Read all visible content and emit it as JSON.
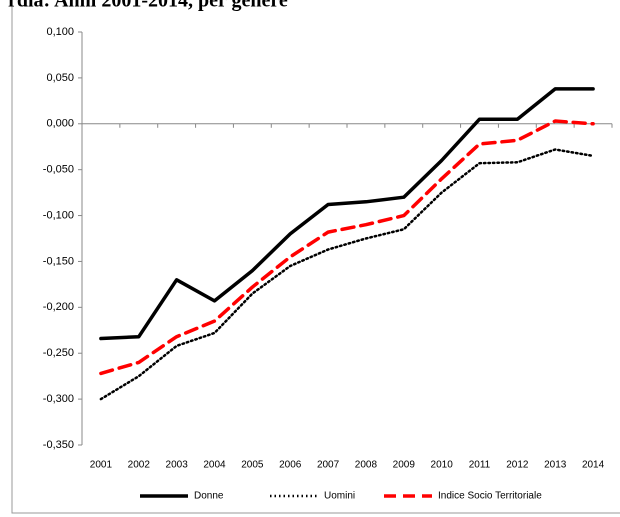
{
  "chart_data": {
    "type": "line",
    "title": "rdia: Anni 2001-2014, per genere",
    "categories": [
      "2001",
      "2002",
      "2003",
      "2004",
      "2005",
      "2006",
      "2007",
      "2008",
      "2009",
      "2010",
      "2011",
      "2012",
      "2013",
      "2014"
    ],
    "series": [
      {
        "name": "Donne",
        "color": "#000000",
        "style": "solid",
        "values": [
          -0.234,
          -0.232,
          -0.17,
          -0.193,
          -0.16,
          -0.12,
          -0.088,
          -0.085,
          -0.08,
          -0.04,
          0.005,
          0.005,
          0.038,
          0.038
        ]
      },
      {
        "name": "Uomini",
        "color": "#000000",
        "style": "dotted",
        "values": [
          -0.3,
          -0.275,
          -0.242,
          -0.228,
          -0.185,
          -0.155,
          -0.137,
          -0.125,
          -0.115,
          -0.075,
          -0.043,
          -0.042,
          -0.028,
          -0.035
        ]
      },
      {
        "name": "Indice Socio Territoriale",
        "color": "#ff0000",
        "style": "dashed",
        "values": [
          -0.272,
          -0.26,
          -0.232,
          -0.215,
          -0.178,
          -0.145,
          -0.118,
          -0.11,
          -0.1,
          -0.06,
          -0.022,
          -0.018,
          0.003,
          0.0
        ]
      }
    ],
    "ylim": [
      -0.35,
      0.1
    ],
    "yticks": [
      {
        "value": 0.1,
        "label": "0,100"
      },
      {
        "value": 0.05,
        "label": "0,050"
      },
      {
        "value": 0,
        "label": "0,000"
      },
      {
        "value": -0.05,
        "label": "-0,050"
      },
      {
        "value": -0.1,
        "label": "-0,100"
      },
      {
        "value": -0.15,
        "label": "-0,150"
      },
      {
        "value": -0.2,
        "label": "-0,200"
      },
      {
        "value": -0.25,
        "label": "-0,250"
      },
      {
        "value": -0.3,
        "label": "-0,300"
      },
      {
        "value": -0.35,
        "label": "-0,350"
      }
    ],
    "grid": false,
    "legend": "bottom"
  }
}
